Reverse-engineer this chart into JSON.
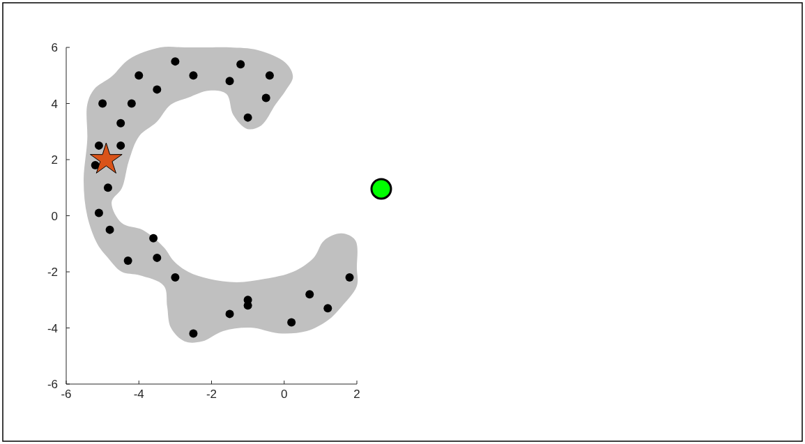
{
  "chart_data": {
    "type": "scatter",
    "xlim": [
      -6,
      2
    ],
    "xticks": [
      -6,
      -4,
      -2,
      0,
      2
    ],
    "ylim": [
      -6,
      6
    ],
    "yticks": [
      -6,
      -4,
      -2,
      0,
      2,
      4,
      6
    ],
    "grid": false,
    "series": [
      {
        "type": "area",
        "color": "#c0c0c0",
        "x": [
          -5.42,
          -5.23,
          -4.75,
          -4.27,
          -3.41,
          -2.74,
          -2.07,
          -1.49,
          -0.72,
          0.04,
          0.24,
          0.04,
          -0.24,
          -0.63,
          -1.01,
          -1.4,
          -1.59,
          -2.07,
          -2.64,
          -3.12,
          -3.51,
          -3.99,
          -4.27,
          -4.47,
          -4.75,
          -4.47,
          -3.89,
          -3.31,
          -3.03,
          -2.64,
          -2.07,
          -1.3,
          -0.53,
          0.24,
          0.81,
          1.1,
          1.58,
          1.96,
          2,
          2,
          1.58,
          1.19,
          0.62,
          -0.15,
          -0.92,
          -1.68,
          -2.26,
          -2.74,
          -3.12,
          -3.22,
          -3.31,
          -3.99,
          -4.47,
          -4.85,
          -5.14,
          -5.42,
          -5.52,
          -5.42
        ],
        "values": [
          3.96,
          4.51,
          4.96,
          5.58,
          6,
          6,
          6,
          6,
          5.9,
          5.45,
          4.96,
          4.46,
          3.96,
          3.22,
          3.09,
          3.59,
          4.34,
          4.46,
          4.21,
          3.96,
          3.34,
          2.84,
          1.98,
          0.98,
          0.48,
          -0.26,
          -0.51,
          -1.13,
          -1.63,
          -2,
          -2.25,
          -2.37,
          -2.25,
          -2,
          -1.5,
          -0.88,
          -0.63,
          -0.88,
          -1.88,
          -2.5,
          -3.24,
          -3.74,
          -4.11,
          -4.19,
          -3.99,
          -4.11,
          -4.48,
          -4.48,
          -3.99,
          -3.24,
          -2.5,
          -2.12,
          -2,
          -1.5,
          -1.01,
          -0.01,
          1.23,
          2.72
        ]
      },
      {
        "color": "#000000",
        "marker": "circle",
        "x": [
          -5,
          -4,
          -3,
          -2.5,
          -3.5,
          -4.2,
          -4.5,
          -5.1,
          -4.5,
          -5.2,
          -4.85,
          -5.1,
          -4.8,
          -3.6,
          -3.5,
          -4.3,
          -3,
          -2.5,
          -1.5,
          -1,
          -1,
          0.2,
          0.7,
          1.2,
          1.8,
          -1.5,
          -1.2,
          -0.4,
          -0.5,
          -1
        ],
        "values": [
          4,
          5,
          5.5,
          5,
          4.5,
          4,
          3.3,
          2.5,
          2.5,
          1.8,
          1,
          0.1,
          -0.5,
          -0.8,
          -1.5,
          -1.6,
          -2.2,
          -4.2,
          -3.5,
          -3,
          -3.2,
          -3.8,
          -2.8,
          -3.3,
          -2.2,
          4.8,
          5.4,
          5,
          4.2,
          3.5
        ]
      },
      {
        "color": "#d95319",
        "marker": "star",
        "x": [
          -4.9
        ],
        "values": [
          2
        ]
      }
    ]
  }
}
